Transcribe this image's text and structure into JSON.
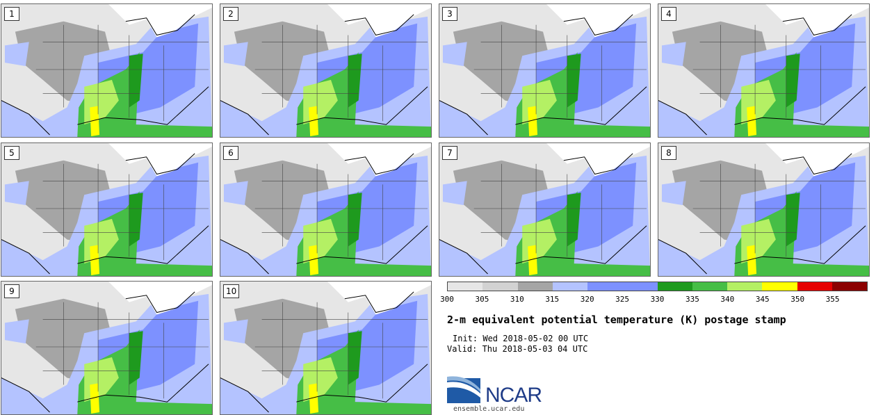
{
  "panels": [
    {
      "label": "1"
    },
    {
      "label": "2"
    },
    {
      "label": "3"
    },
    {
      "label": "4"
    },
    {
      "label": "5"
    },
    {
      "label": "6"
    },
    {
      "label": "7"
    },
    {
      "label": "8"
    },
    {
      "label": "9"
    },
    {
      "label": "10"
    }
  ],
  "legend": {
    "ticks": [
      "300",
      "305",
      "310",
      "315",
      "320",
      "325",
      "330",
      "335",
      "340",
      "345",
      "350",
      "355"
    ],
    "colors": [
      "#e6e6e6",
      "#d2d2d2",
      "#a5a5a5",
      "#b4c3ff",
      "#7d91ff",
      "#7d91ff",
      "#1e9a1e",
      "#46be46",
      "#b4f064",
      "#ffff00",
      "#e60000",
      "#8c0000"
    ]
  },
  "title": "2-m equivalent potential temperature (K) postage stamp",
  "init": "Init: Wed 2018-05-02 00 UTC",
  "valid": "Valid: Thu 2018-05-03 04 UTC",
  "logo": {
    "name": "NCAR",
    "url": "ensemble.ucar.edu"
  },
  "colors": {
    "light_gray": "#e6e6e6",
    "mid_gray": "#a5a5a5",
    "light_blue": "#b4c3ff",
    "blue": "#7d91ff",
    "dark_green": "#1e9a1e",
    "green": "#46be46",
    "lime": "#b4f064",
    "yellow": "#ffff00"
  }
}
